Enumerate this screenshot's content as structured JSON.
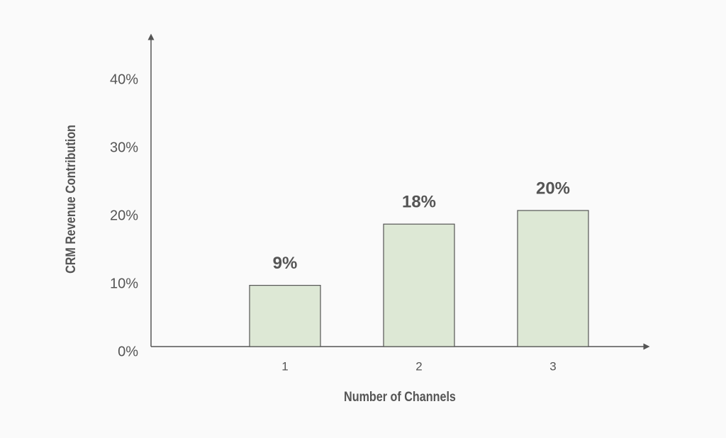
{
  "chart_data": {
    "type": "bar",
    "x_label": "Number of Channels",
    "y_label": "CRM Revenue Contribution",
    "categories": [
      "1",
      "2",
      "3"
    ],
    "values": [
      9,
      18,
      20
    ],
    "value_labels": [
      "9%",
      "18%",
      "20%"
    ],
    "color": "#dde8d5",
    "ylim": [
      0,
      45
    ],
    "yticks": [
      {
        "value": 0,
        "label": "0%"
      },
      {
        "value": 10,
        "label": "10%"
      },
      {
        "value": 20,
        "label": "20%"
      },
      {
        "value": 30,
        "label": "30%"
      },
      {
        "value": 40,
        "label": "40%"
      }
    ],
    "grid": false
  }
}
